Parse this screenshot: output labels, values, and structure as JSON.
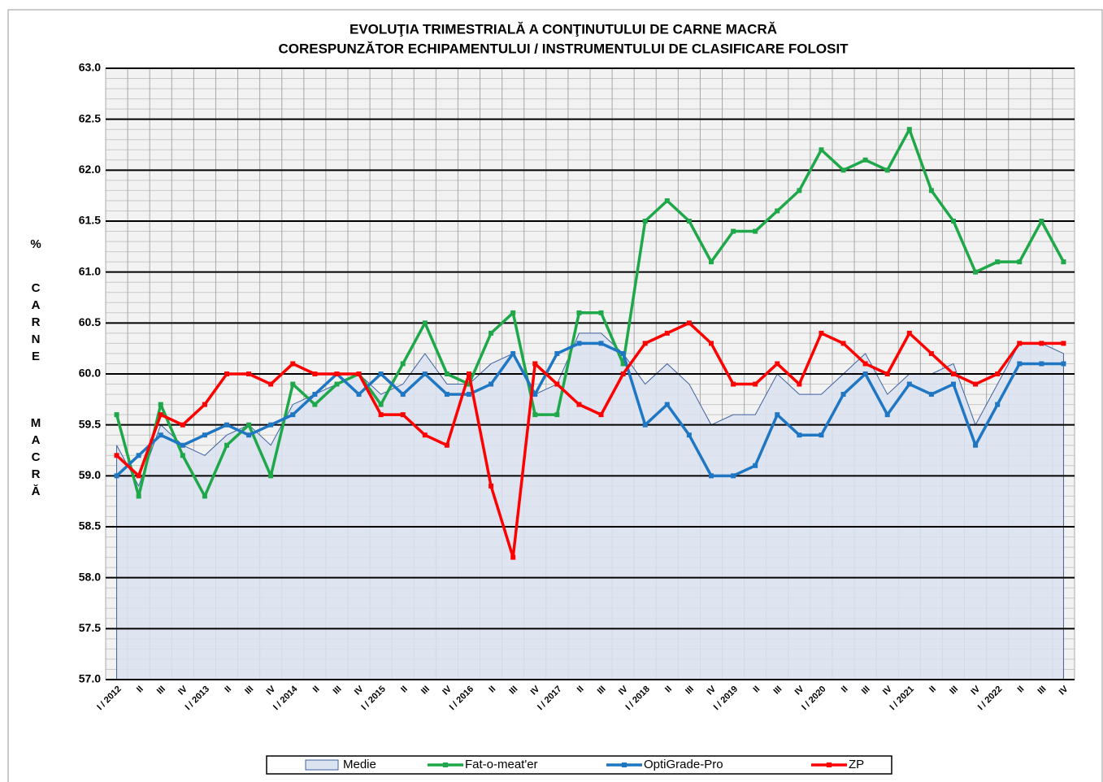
{
  "chart_data": {
    "type": "line",
    "title": "EVOLUŢIA TRIMESTRIALĂ A CONŢINUTULUI DE CARNE MACRĂ",
    "subtitle": "CORESPUNZĂTOR  ECHIPAMENTULUI / INSTRUMENTULUI DE CLASIFICARE FOLOSIT",
    "ylabel": [
      "%",
      "CARNE",
      "MACRĂ"
    ],
    "categories": [
      "I / 2012",
      "II",
      "III",
      "IV",
      "I / 2013",
      "II",
      "III",
      "IV",
      "I / 2014",
      "II",
      "III",
      "IV",
      "I / 2015",
      "II",
      "III",
      "IV",
      "I / 2016",
      "II",
      "III",
      "IV",
      "I / 2017",
      "II",
      "III",
      "IV",
      "I / 2018",
      "II",
      "III",
      "IV",
      "I / 2019",
      "II",
      "III",
      "IV",
      "I / 2020",
      "II",
      "III",
      "IV",
      "I / 2021",
      "II",
      "III",
      "IV",
      "I / 2022",
      "II",
      "III",
      "IV"
    ],
    "ylim": [
      57,
      63
    ],
    "yticks": [
      {
        "value": 57,
        "label": "57.0"
      },
      57.5,
      {
        "value": 58,
        "label": "58.0"
      },
      58.5,
      {
        "value": 59,
        "label": "59.0"
      },
      59.5,
      {
        "value": 60,
        "label": "60.0"
      },
      60.5,
      {
        "value": 61,
        "label": "61.0"
      },
      61.5,
      {
        "value": 62,
        "label": "62.0"
      },
      62.5,
      {
        "value": 63,
        "label": "63.0"
      }
    ],
    "grid": true,
    "legend": "bottom",
    "series": [
      {
        "name": "Medie",
        "kind": "area",
        "color": "#dbe2f0",
        "values": [
          59.3,
          58.9,
          59.5,
          59.3,
          59.2,
          59.4,
          59.5,
          59.3,
          59.7,
          59.8,
          59.9,
          60.0,
          59.8,
          59.9,
          60.2,
          59.9,
          59.9,
          60.1,
          60.2,
          59.8,
          59.9,
          60.4,
          60.4,
          60.2,
          59.9,
          60.1,
          59.9,
          59.5,
          59.6,
          59.6,
          60.0,
          59.8,
          59.8,
          60.0,
          60.2,
          59.8,
          60.0,
          60.0,
          60.1,
          59.5,
          59.9,
          60.3,
          60.3,
          60.2
        ]
      },
      {
        "name": "Fat-o-meat'er",
        "kind": "line",
        "color": "#1fa84a",
        "values": [
          59.6,
          58.8,
          59.7,
          59.2,
          58.8,
          59.3,
          59.5,
          59.0,
          59.9,
          59.7,
          59.9,
          60.0,
          59.7,
          60.1,
          60.5,
          60.0,
          59.9,
          60.4,
          60.6,
          59.6,
          59.6,
          60.6,
          60.6,
          60.1,
          61.5,
          61.7,
          61.5,
          61.1,
          61.4,
          61.4,
          61.6,
          61.8,
          62.2,
          62.0,
          62.1,
          62.0,
          62.4,
          61.8,
          61.5,
          61.0,
          61.1,
          61.1,
          61.5,
          61.1
        ]
      },
      {
        "name": "OptiGrade-Pro",
        "kind": "line",
        "color": "#1f77c4",
        "values": [
          59.0,
          59.2,
          59.4,
          59.3,
          59.4,
          59.5,
          59.4,
          59.5,
          59.6,
          59.8,
          60.0,
          59.8,
          60.0,
          59.8,
          60.0,
          59.8,
          59.8,
          59.9,
          60.2,
          59.8,
          60.2,
          60.3,
          60.3,
          60.2,
          59.5,
          59.7,
          59.4,
          59.0,
          59.0,
          59.1,
          59.6,
          59.4,
          59.4,
          59.8,
          60.0,
          59.6,
          59.9,
          59.8,
          59.9,
          59.3,
          59.7,
          60.1,
          60.1,
          60.1
        ]
      },
      {
        "name": "ZP",
        "kind": "line",
        "color": "#ff0000",
        "values": [
          59.2,
          59.0,
          59.6,
          59.5,
          59.7,
          60.0,
          60.0,
          59.9,
          60.1,
          60.0,
          60.0,
          60.0,
          59.6,
          59.6,
          59.4,
          59.3,
          60.0,
          58.9,
          58.2,
          60.1,
          59.9,
          59.7,
          59.6,
          60.0,
          60.3,
          60.4,
          60.5,
          60.3,
          59.9,
          59.9,
          60.1,
          59.9,
          60.4,
          60.3,
          60.1,
          60.0,
          60.4,
          60.2,
          60.0,
          59.9,
          60.0,
          60.3,
          60.3,
          60.3
        ]
      }
    ]
  }
}
